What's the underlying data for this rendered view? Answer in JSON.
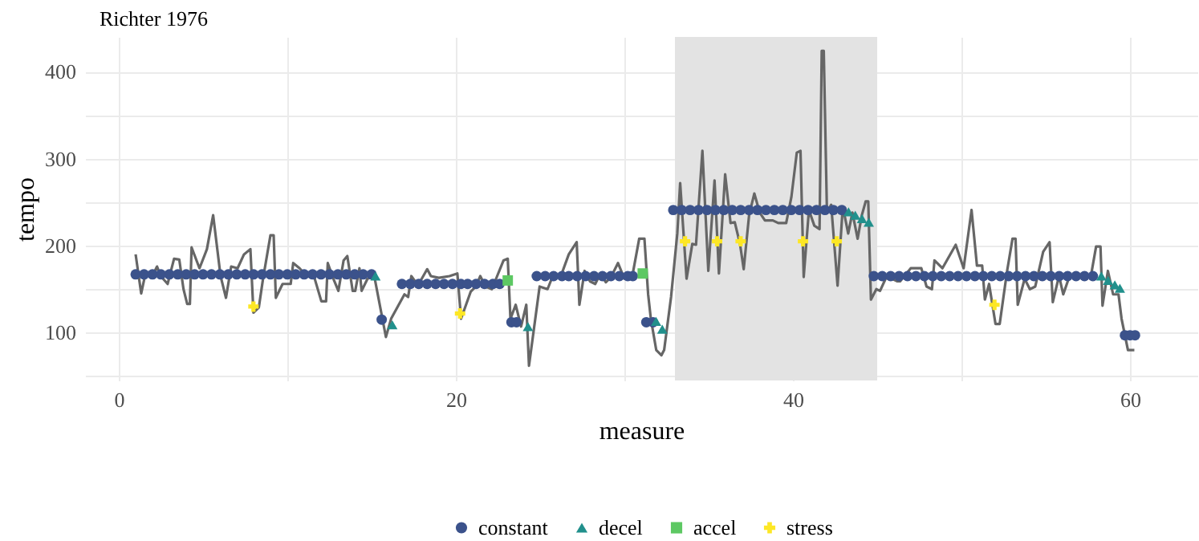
{
  "chart_data": {
    "type": "line",
    "title": "Richter 1976",
    "xlabel": "measure",
    "ylabel": "tempo",
    "xlim": [
      -2,
      64
    ],
    "ylim": [
      45,
      440
    ],
    "xticks": [
      0,
      {
        "value": 10,
        "label": null
      },
      20,
      {
        "value": 30,
        "label": null
      },
      40,
      {
        "value": 50,
        "label": null
      },
      60
    ],
    "yticks": [
      {
        "value": 50,
        "label": null
      },
      100,
      {
        "value": 150,
        "label": null
      },
      200,
      {
        "value": 250,
        "label": null
      },
      300,
      {
        "value": 350,
        "label": null
      },
      400
    ],
    "grid": true,
    "legend": "bottom",
    "bands": [
      {
        "axis": "x",
        "from": 33,
        "to": 45,
        "color": "#e3e3e3"
      }
    ],
    "series": [
      {
        "type": "line",
        "color": "#666666",
        "line_style": "solid",
        "marker": "none",
        "x": [
          1.0,
          1.33,
          1.55,
          2.02,
          2.27,
          2.49,
          2.9,
          3.28,
          3.59,
          3.84,
          4.06,
          4.22,
          4.32,
          4.79,
          5.23,
          5.6,
          6.04,
          6.36,
          6.67,
          7.05,
          7.43,
          7.81,
          7.99,
          8.31,
          8.56,
          9.0,
          9.19,
          9.32,
          9.72,
          10.2,
          10.35,
          10.73,
          11.14,
          11.61,
          12.02,
          12.3,
          12.4,
          12.71,
          13.03,
          13.34,
          13.56,
          13.88,
          14.03,
          14.28,
          14.41,
          14.76,
          15.16,
          15.85,
          16.16,
          16.95,
          17.17,
          17.36,
          17.58,
          17.89,
          18.3,
          18.52,
          18.99,
          19.62,
          20.09,
          20.31,
          20.88,
          21.19,
          21.45,
          21.76,
          22.14,
          22.45,
          22.83,
          23.08,
          23.24,
          23.55,
          23.87,
          24.18,
          24.34,
          24.59,
          24.97,
          25.44,
          25.75,
          26.23,
          26.7,
          27.17,
          27.33,
          27.64,
          27.96,
          28.27,
          28.58,
          28.9,
          29.21,
          29.62,
          30.0,
          30.47,
          30.88,
          31.19,
          31.41,
          31.57,
          31.89,
          32.2,
          32.36,
          32.77,
          33.14,
          33.31,
          33.69,
          34.03,
          34.25,
          34.63,
          34.98,
          35.35,
          35.61,
          35.98,
          36.3,
          36.55,
          36.86,
          37.08,
          37.4,
          37.71,
          38.03,
          38.34,
          38.81,
          39.13,
          39.6,
          39.91,
          40.23,
          40.45,
          40.64,
          40.95,
          41.27,
          41.58,
          41.71,
          41.83,
          42.02,
          42.27,
          42.65,
          42.96,
          43.28,
          43.53,
          43.84,
          44.09,
          44.32,
          44.47,
          44.63,
          44.95,
          45.17,
          45.57,
          46.2,
          46.36,
          46.99,
          47.62,
          47.93,
          48.25,
          48.4,
          48.87,
          49.66,
          50.13,
          50.6,
          50.92,
          51.23,
          51.39,
          51.64,
          52.02,
          52.27,
          52.71,
          53.03,
          53.21,
          53.34,
          53.75,
          54.06,
          54.38,
          54.85,
          55.23,
          55.42,
          55.79,
          56.04,
          56.36,
          56.58,
          57.05,
          57.68,
          57.99,
          58.25,
          58.37,
          58.69,
          59.0,
          59.32,
          59.5,
          59.88,
          60.26
        ],
        "values": [
          190,
          145,
          165,
          166,
          176,
          165,
          156,
          185,
          184,
          150,
          133,
          133,
          198,
          174,
          196,
          235,
          165,
          140,
          176,
          174,
          190,
          196,
          123,
          129,
          162,
          212,
          212,
          140,
          156,
          156,
          180,
          174,
          165,
          163,
          136,
          136,
          180,
          163,
          148,
          183,
          188,
          148,
          148,
          174,
          148,
          162,
          165,
          95,
          116,
          144,
          141,
          165,
          159,
          159,
          173,
          165,
          163,
          165,
          168,
          116,
          147,
          153,
          165,
          153,
          150,
          165,
          183,
          185,
          116,
          132,
          107,
          132,
          62,
          98,
          153,
          150,
          165,
          165,
          190,
          204,
          132,
          171,
          159,
          156,
          168,
          158,
          164,
          180,
          162,
          165,
          208,
          208,
          144,
          116,
          80,
          74,
          80,
          141,
          214,
          272,
          162,
          202,
          201,
          309,
          171,
          275,
          168,
          282,
          226,
          227,
          202,
          173,
          235,
          260,
          238,
          229,
          229,
          226,
          226,
          256,
          307,
          309,
          164,
          241,
          223,
          219,
          424,
          424,
          238,
          247,
          154,
          245,
          214,
          238,
          208,
          235,
          251,
          251,
          138,
          150,
          148,
          165,
          159,
          159,
          174,
          174,
          153,
          150,
          183,
          174,
          201,
          174,
          241,
          177,
          177,
          138,
          156,
          110,
          110,
          171,
          208,
          208,
          132,
          162,
          150,
          153,
          193,
          204,
          135,
          165,
          144,
          162,
          165,
          165,
          165,
          199,
          199,
          131,
          171,
          144,
          144,
          116,
          80,
          80
        ]
      },
      {
        "type": "scatter",
        "name": "constant",
        "color": "#3b528b",
        "marker": "circle",
        "x": [
          1.0,
          1.5,
          2.0,
          2.5,
          3.0,
          3.5,
          4.0,
          4.5,
          5.0,
          5.5,
          6.0,
          6.5,
          7.0,
          7.5,
          8.0,
          8.5,
          9.0,
          9.5,
          10.0,
          10.5,
          11.0,
          11.5,
          12.0,
          12.5,
          13.0,
          13.5,
          14.0,
          14.5,
          15.0,
          15.6,
          16.8,
          17.3,
          17.8,
          18.3,
          18.8,
          19.3,
          19.8,
          20.3,
          20.7,
          21.2,
          21.7,
          22.2,
          22.6,
          23.3,
          23.6,
          24.8,
          25.3,
          25.8,
          26.3,
          26.7,
          27.2,
          27.7,
          28.2,
          28.7,
          29.2,
          29.7,
          30.2,
          30.5,
          31.3,
          31.7,
          32.9,
          33.4,
          33.9,
          34.4,
          34.9,
          35.4,
          35.9,
          36.4,
          36.9,
          37.4,
          37.9,
          38.4,
          38.9,
          39.4,
          39.9,
          40.4,
          40.9,
          41.4,
          41.9,
          42.4,
          42.9,
          44.8,
          45.3,
          45.8,
          46.3,
          46.8,
          47.3,
          47.8,
          48.3,
          48.8,
          49.3,
          49.8,
          50.3,
          50.8,
          51.3,
          51.8,
          52.3,
          52.8,
          53.3,
          53.8,
          54.3,
          54.8,
          55.3,
          55.8,
          56.3,
          56.8,
          57.3,
          57.8,
          59.7,
          60.0,
          60.3
        ],
        "values": [
          167,
          167,
          167,
          167,
          167,
          167,
          167,
          167,
          167,
          167,
          167,
          167,
          167,
          167,
          167,
          167,
          167,
          167,
          167,
          167,
          167,
          167,
          167,
          167,
          167,
          167,
          167,
          167,
          167,
          115,
          156,
          156,
          156,
          156,
          156,
          156,
          156,
          156,
          156,
          156,
          156,
          156,
          156,
          112,
          112,
          165,
          165,
          165,
          165,
          165,
          165,
          165,
          165,
          165,
          165,
          165,
          165,
          165,
          112,
          112,
          241,
          241,
          241,
          241,
          241,
          241,
          241,
          241,
          241,
          241,
          241,
          241,
          241,
          241,
          241,
          241,
          241,
          241,
          241,
          241,
          241,
          165,
          165,
          165,
          165,
          165,
          165,
          165,
          165,
          165,
          165,
          165,
          165,
          165,
          165,
          165,
          165,
          165,
          165,
          165,
          165,
          165,
          165,
          165,
          165,
          165,
          165,
          165,
          97,
          97,
          97
        ]
      },
      {
        "type": "scatter",
        "name": "decel",
        "color": "#21908c",
        "marker": "triangle",
        "x": [
          15.23,
          16.23,
          24.28,
          31.88,
          32.25,
          43.3,
          43.7,
          44.1,
          44.5,
          58.3,
          58.7,
          59.1,
          59.4
        ],
        "values": [
          165,
          109,
          107,
          113,
          104,
          239,
          235,
          231,
          227,
          165,
          160,
          155,
          151
        ]
      },
      {
        "type": "scatter",
        "name": "accel",
        "color": "#5dc863",
        "marker": "square",
        "x": [
          23.08,
          31.09
        ],
        "values": [
          160,
          168
        ]
      },
      {
        "type": "scatter",
        "name": "stress",
        "color": "#fde725",
        "marker": "cross",
        "x": [
          7.99,
          20.25,
          33.6,
          35.5,
          36.9,
          40.6,
          42.6,
          51.96
        ],
        "values": [
          130,
          122,
          205,
          205,
          205,
          205,
          205,
          132
        ]
      }
    ]
  }
}
